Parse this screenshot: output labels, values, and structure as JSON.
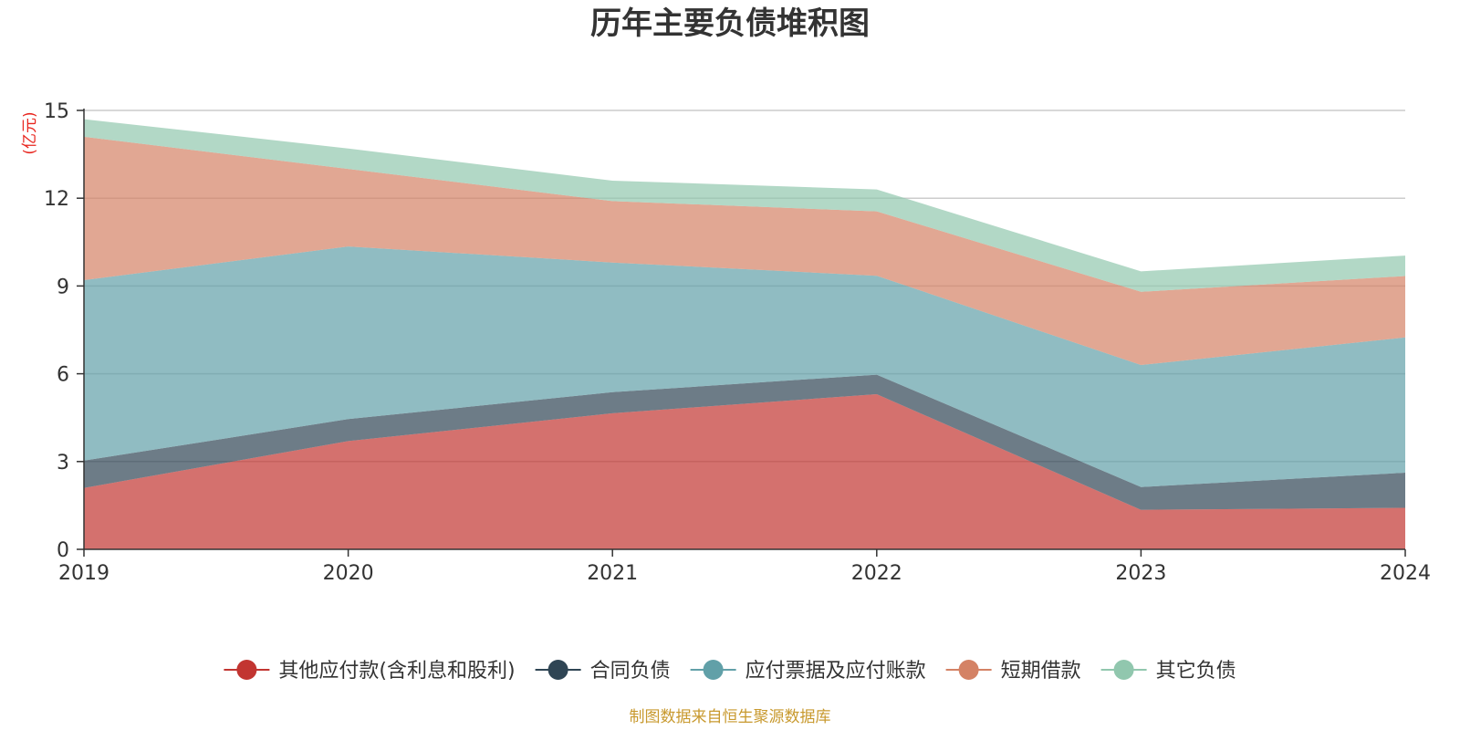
{
  "chart_data": {
    "type": "area",
    "stacked": true,
    "title": "历年主要负债堆积图",
    "ylabel": "(亿元)",
    "xlabel": "",
    "categories": [
      "2019",
      "2020",
      "2021",
      "2022",
      "2023",
      "2024"
    ],
    "ylim": [
      0,
      15
    ],
    "yticks": [
      0,
      3,
      6,
      9,
      12,
      15
    ],
    "grid": true,
    "legend_position": "bottom",
    "series": [
      {
        "name": "其他应付款(含利息和股利)",
        "color": "#c23531",
        "values": [
          2.1,
          3.7,
          4.65,
          5.3,
          1.35,
          1.42
        ]
      },
      {
        "name": "合同负债",
        "color": "#2f4554",
        "values": [
          0.93,
          0.75,
          0.72,
          0.67,
          0.78,
          1.2
        ]
      },
      {
        "name": "应付票据及应付账款",
        "color": "#61a0a8",
        "values": [
          6.17,
          5.9,
          4.43,
          3.38,
          4.17,
          4.62
        ]
      },
      {
        "name": "短期借款",
        "color": "#d48265",
        "values": [
          4.9,
          2.65,
          2.1,
          2.2,
          2.5,
          2.1
        ]
      },
      {
        "name": "其它负债",
        "color": "#91c7ae",
        "values": [
          0.6,
          0.7,
          0.7,
          0.75,
          0.7,
          0.7
        ]
      }
    ]
  },
  "source_note": "制图数据来自恒生聚源数据库"
}
